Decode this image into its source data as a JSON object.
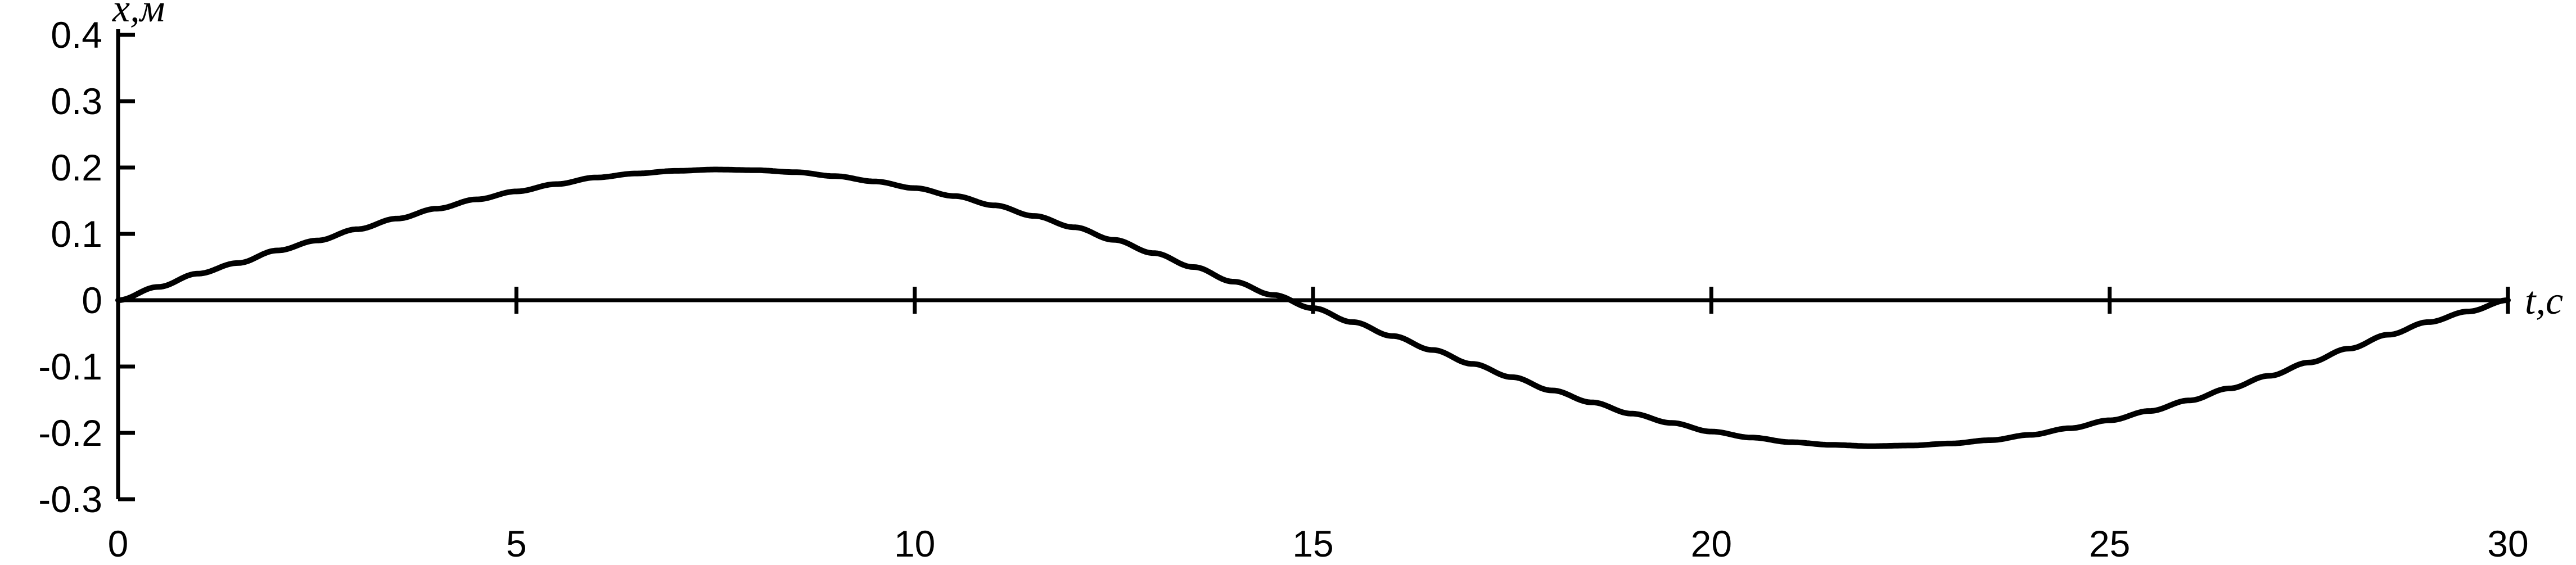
{
  "chart_data": {
    "type": "line",
    "title": "",
    "xlabel": "t,с",
    "ylabel": "x,м",
    "xlim": [
      0,
      30
    ],
    "ylim": [
      -0.3,
      0.4
    ],
    "x_ticks": [
      0,
      5,
      10,
      15,
      20,
      25,
      30
    ],
    "x_tick_labels": [
      "0",
      "5",
      "10",
      "15",
      "20",
      "25",
      "30"
    ],
    "y_ticks": [
      0.4,
      0.3,
      0.2,
      0.1,
      0,
      -0.1,
      -0.2,
      -0.3
    ],
    "y_tick_labels": [
      "0.4",
      "0.3",
      "0.2",
      "0.1",
      "0",
      "-0.1",
      "-0.2",
      "-0.3"
    ],
    "grid": false,
    "legend": "none",
    "line_color": "#000000",
    "series": [
      {
        "x": [
          0,
          0.5,
          1,
          1.5,
          2,
          2.5,
          3,
          3.5,
          4,
          4.5,
          5,
          5.5,
          6,
          6.5,
          7,
          7.5,
          8,
          8.5,
          9,
          9.5,
          10,
          10.5,
          11,
          11.5,
          12,
          12.5,
          13,
          13.5,
          14,
          14.5,
          15,
          15.5,
          16,
          16.5,
          17,
          17.5,
          18,
          18.5,
          19,
          19.5,
          20,
          20.5,
          21,
          21.5,
          22,
          22.5,
          23,
          23.5,
          24,
          24.5,
          25,
          25.5,
          26,
          26.5,
          27,
          27.5,
          28,
          28.5,
          29,
          29.5,
          30
        ],
        "y": [
          0,
          0.02,
          0.04,
          0.056,
          0.075,
          0.09,
          0.107,
          0.123,
          0.138,
          0.152,
          0.164,
          0.175,
          0.185,
          0.191,
          0.195,
          0.197,
          0.196,
          0.193,
          0.187,
          0.179,
          0.169,
          0.157,
          0.143,
          0.127,
          0.11,
          0.091,
          0.071,
          0.05,
          0.028,
          0.008,
          -0.012,
          -0.033,
          -0.054,
          -0.075,
          -0.096,
          -0.116,
          -0.136,
          -0.154,
          -0.171,
          -0.185,
          -0.198,
          -0.207,
          -0.214,
          -0.218,
          -0.22,
          -0.219,
          -0.216,
          -0.211,
          -0.203,
          -0.193,
          -0.181,
          -0.167,
          -0.151,
          -0.133,
          -0.114,
          -0.094,
          -0.073,
          -0.052,
          -0.033,
          -0.017,
          0
        ]
      }
    ]
  }
}
